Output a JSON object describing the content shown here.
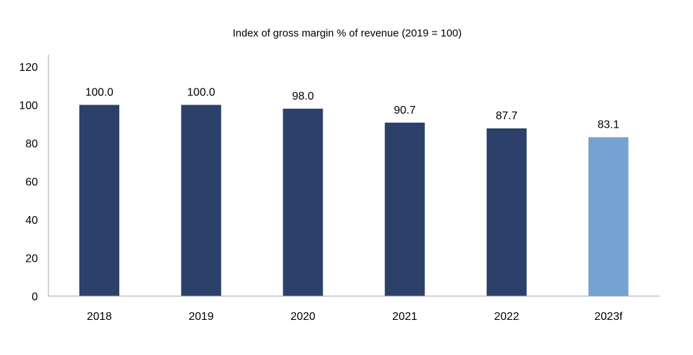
{
  "chart_data": {
    "type": "bar",
    "title": "Index of gross margin % of revenue (2019 = 100)",
    "categories": [
      "2018",
      "2019",
      "2020",
      "2021",
      "2022",
      "2023f"
    ],
    "values": [
      100.0,
      100.0,
      98.0,
      90.7,
      87.7,
      83.1
    ],
    "data_labels": [
      "100.0",
      "100.0",
      "98.0",
      "90.7",
      "87.7",
      "83.1"
    ],
    "bar_colors": [
      "#2b4169",
      "#2b4169",
      "#2b4169",
      "#2b4169",
      "#2b4169",
      "#74a3d2"
    ],
    "axis_color": "#a6a6a6",
    "ylim": [
      0,
      120
    ],
    "yticks": [
      0,
      20,
      40,
      60,
      80,
      100,
      120
    ],
    "grid": false,
    "legend": "none"
  }
}
